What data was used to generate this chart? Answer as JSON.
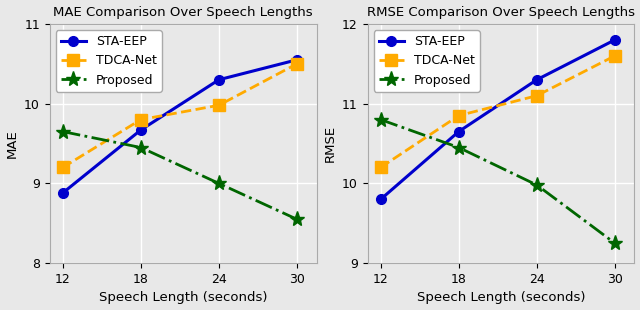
{
  "x": [
    12,
    18,
    24,
    30
  ],
  "mae": {
    "STA-EEP": [
      8.88,
      9.67,
      10.3,
      10.55
    ],
    "TDCA-Net": [
      9.2,
      9.8,
      9.98,
      10.5
    ],
    "Proposed": [
      9.65,
      9.45,
      9.0,
      8.55
    ]
  },
  "rmse": {
    "STA-EEP": [
      9.8,
      10.65,
      11.3,
      11.8
    ],
    "TDCA-Net": [
      10.2,
      10.85,
      11.1,
      11.6
    ],
    "Proposed": [
      10.8,
      10.45,
      9.98,
      9.25
    ]
  },
  "mae_ylim": [
    8,
    11
  ],
  "rmse_ylim": [
    9,
    12
  ],
  "xlabel": "Speech Length (seconds)",
  "mae_ylabel": "MAE",
  "rmse_ylabel": "RMSE",
  "mae_title": "MAE Comparison Over Speech Lengths",
  "rmse_title": "RMSE Comparison Over Speech Lengths",
  "colors": {
    "STA-EEP": "#0000cc",
    "TDCA-Net": "#ffaa00",
    "Proposed": "#006600"
  },
  "linestyles": {
    "STA-EEP": "-",
    "TDCA-Net": "--",
    "Proposed": "-."
  },
  "markers": {
    "STA-EEP": "o",
    "TDCA-Net": "s",
    "Proposed": "*"
  },
  "markersizes": {
    "STA-EEP": 7,
    "TDCA-Net": 8,
    "Proposed": 11
  },
  "linewidths": {
    "STA-EEP": 2.2,
    "TDCA-Net": 2.0,
    "Proposed": 2.0
  },
  "xticks": [
    12,
    18,
    24,
    30
  ],
  "yticks_mae": [
    8,
    9,
    10,
    11
  ],
  "yticks_rmse": [
    9,
    10,
    11,
    12
  ],
  "bg_color": "#e8e8e8",
  "grid_color": "#ffffff",
  "title_fontsize": 9.5,
  "label_fontsize": 9.5,
  "tick_fontsize": 9,
  "legend_fontsize": 9
}
